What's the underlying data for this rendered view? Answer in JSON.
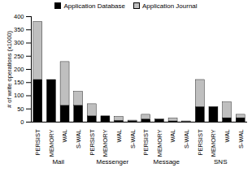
{
  "chart_data": {
    "type": "bar",
    "stacked": true,
    "legend": "top",
    "grid": false,
    "y_label": "# of write operations (x1000)",
    "groups": [
      "Mail",
      "Messenger",
      "Message",
      "SNS"
    ],
    "categories": [
      "PERSIST",
      "MEMORY",
      "WAL",
      "S-WAL",
      "PERSIST",
      "MEMORY",
      "WAL",
      "S-WAL",
      "PERSIST",
      "MEMORY",
      "WAL",
      "S-WAL",
      "PERSIST",
      "MEMORY",
      "WAL",
      "S-WAL"
    ],
    "series": [
      {
        "name": "Application Database",
        "color": "#000000",
        "values": [
          160,
          160,
          62,
          62,
          22,
          22,
          5,
          3,
          10,
          10,
          3,
          1,
          57,
          57,
          15,
          15
        ]
      },
      {
        "name": "Application Journal",
        "color": "#bfbfbf",
        "values": [
          220,
          0,
          166,
          53,
          46,
          0,
          15,
          3,
          18,
          0,
          11,
          2,
          103,
          0,
          60,
          13
        ]
      }
    ],
    "ylim": [
      0,
      400
    ],
    "yticks": [
      0,
      50,
      100,
      150,
      200,
      250,
      300,
      350,
      400
    ]
  }
}
